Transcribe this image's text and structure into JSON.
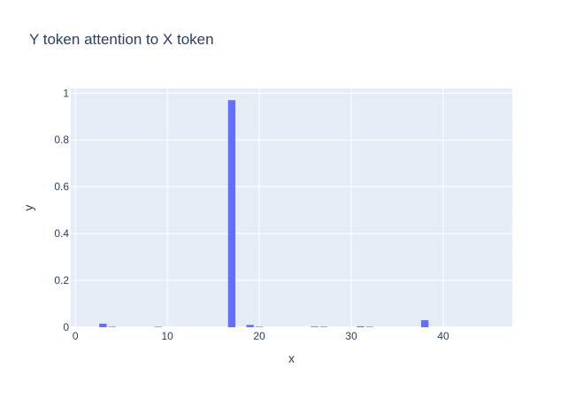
{
  "chart_data": {
    "type": "bar",
    "title": "Y token attention to X token",
    "xlabel": "x",
    "ylabel": "y",
    "xlim": [
      -0.5,
      47.5
    ],
    "ylim": [
      0,
      1.02
    ],
    "xticks": [
      0,
      10,
      20,
      30,
      40
    ],
    "yticks": [
      0,
      0.2,
      0.4,
      0.6,
      0.8,
      1
    ],
    "ytick_labels": [
      "0",
      "0.2",
      "0.4",
      "0.6",
      "0.8",
      "1"
    ],
    "grid": true,
    "bar_color": "#636efa",
    "plot_bg": "#e5ecf6",
    "x": [
      0,
      1,
      2,
      3,
      4,
      5,
      6,
      7,
      8,
      9,
      10,
      11,
      12,
      13,
      14,
      15,
      16,
      17,
      18,
      19,
      20,
      21,
      22,
      23,
      24,
      25,
      26,
      27,
      28,
      29,
      30,
      31,
      32,
      33,
      34,
      35,
      36,
      37,
      38,
      39,
      40,
      41,
      42,
      43,
      44,
      45,
      46,
      47
    ],
    "values": [
      0,
      0,
      0,
      0.015,
      0.001,
      0,
      0,
      0,
      0,
      0.002,
      0,
      0,
      0,
      0,
      0,
      0,
      0,
      0.97,
      0,
      0.01,
      0.001,
      0,
      0,
      0,
      0,
      0,
      0.003,
      0.002,
      0,
      0,
      0,
      0.004,
      0.002,
      0,
      0,
      0,
      0,
      0,
      0.03,
      0,
      0,
      0,
      0,
      0,
      0,
      0,
      0,
      0
    ]
  }
}
